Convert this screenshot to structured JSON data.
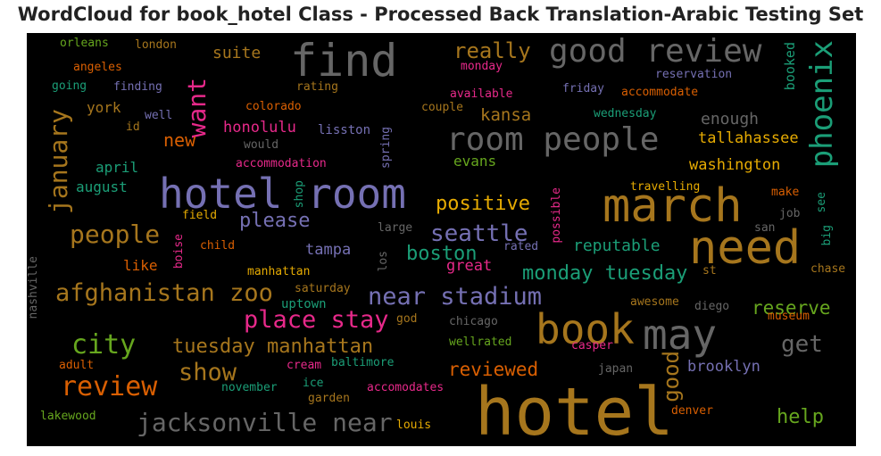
{
  "chart_data": {
    "type": "wordcloud",
    "title": "WordCloud for book_hotel Class - Processed Back Translation-Arabic Testing Set",
    "palette": {
      "brown": "#a6761d",
      "gray": "#666666",
      "purple": "#7570b3",
      "teal": "#1b9e77",
      "orange": "#d95f02",
      "pink": "#e7298a",
      "green": "#66a61e",
      "gold": "#e6ab02"
    },
    "words": [
      {
        "text": "hotel",
        "color": "brown"
      },
      {
        "text": "hotel room",
        "color": "purple"
      },
      {
        "text": "march",
        "color": "brown"
      },
      {
        "text": "need",
        "color": "brown"
      },
      {
        "text": "find",
        "color": "gray"
      },
      {
        "text": "book",
        "color": "brown"
      },
      {
        "text": "may",
        "color": "gray"
      },
      {
        "text": "room people",
        "color": "gray"
      },
      {
        "text": "good review",
        "color": "gray"
      },
      {
        "text": "phoenix",
        "color": "teal"
      },
      {
        "text": "jacksonville near",
        "color": "gray"
      },
      {
        "text": "afghanistan zoo",
        "color": "brown"
      },
      {
        "text": "near stadium",
        "color": "purple"
      },
      {
        "text": "review",
        "color": "orange"
      },
      {
        "text": "city",
        "color": "green"
      },
      {
        "text": "people",
        "color": "brown"
      },
      {
        "text": "place stay",
        "color": "pink"
      },
      {
        "text": "january",
        "color": "brown"
      },
      {
        "text": "want",
        "color": "pink"
      },
      {
        "text": "tuesday manhattan",
        "color": "brown"
      },
      {
        "text": "show",
        "color": "brown"
      },
      {
        "text": "seattle",
        "color": "purple"
      },
      {
        "text": "good",
        "color": "brown"
      },
      {
        "text": "get",
        "color": "gray"
      },
      {
        "text": "really",
        "color": "brown"
      },
      {
        "text": "monday tuesday",
        "color": "teal"
      },
      {
        "text": "boston",
        "color": "teal"
      },
      {
        "text": "positive",
        "color": "gold"
      },
      {
        "text": "please",
        "color": "purple"
      },
      {
        "text": "reviewed",
        "color": "orange"
      },
      {
        "text": "help",
        "color": "green"
      },
      {
        "text": "reserve",
        "color": "green"
      },
      {
        "text": "brooklyn",
        "color": "purple"
      },
      {
        "text": "kansa",
        "color": "brown"
      },
      {
        "text": "new",
        "color": "orange"
      },
      {
        "text": "reputable",
        "color": "teal"
      },
      {
        "text": "tallahassee",
        "color": "gold"
      },
      {
        "text": "washington",
        "color": "gold"
      },
      {
        "text": "enough",
        "color": "gray"
      },
      {
        "text": "suite",
        "color": "brown"
      },
      {
        "text": "tampa",
        "color": "purple"
      },
      {
        "text": "honolulu",
        "color": "pink"
      },
      {
        "text": "great",
        "color": "pink"
      },
      {
        "text": "booked",
        "color": "teal"
      },
      {
        "text": "york",
        "color": "brown"
      },
      {
        "text": "april",
        "color": "teal"
      },
      {
        "text": "august",
        "color": "teal"
      },
      {
        "text": "evans",
        "color": "green"
      },
      {
        "text": "like",
        "color": "orange"
      },
      {
        "text": "uptown",
        "color": "teal"
      },
      {
        "text": "lisston",
        "color": "purple"
      },
      {
        "text": "colorado",
        "color": "orange"
      },
      {
        "text": "manhattan",
        "color": "gold"
      },
      {
        "text": "saturday",
        "color": "brown"
      },
      {
        "text": "travelling",
        "color": "gold"
      },
      {
        "text": "awesome",
        "color": "brown"
      },
      {
        "text": "diego",
        "color": "gray"
      },
      {
        "text": "chicago",
        "color": "gray"
      },
      {
        "text": "wellrated",
        "color": "green"
      },
      {
        "text": "baltimore",
        "color": "teal"
      },
      {
        "text": "accomodates",
        "color": "pink"
      },
      {
        "text": "denver",
        "color": "orange"
      },
      {
        "text": "louis",
        "color": "gold"
      },
      {
        "text": "lakewood",
        "color": "green"
      },
      {
        "text": "adult",
        "color": "orange"
      },
      {
        "text": "cream",
        "color": "pink"
      },
      {
        "text": "ice",
        "color": "teal"
      },
      {
        "text": "garden",
        "color": "brown"
      },
      {
        "text": "november",
        "color": "teal"
      },
      {
        "text": "japan",
        "color": "gray"
      },
      {
        "text": "casper",
        "color": "pink"
      },
      {
        "text": "god",
        "color": "brown"
      },
      {
        "text": "museum",
        "color": "orange"
      },
      {
        "text": "chase",
        "color": "brown"
      },
      {
        "text": "st",
        "color": "brown"
      },
      {
        "text": "rated",
        "color": "purple"
      },
      {
        "text": "los",
        "color": "gray"
      },
      {
        "text": "large",
        "color": "gray"
      },
      {
        "text": "possible",
        "color": "pink"
      },
      {
        "text": "san",
        "color": "gray"
      },
      {
        "text": "job",
        "color": "gray"
      },
      {
        "text": "big",
        "color": "teal"
      },
      {
        "text": "see",
        "color": "teal"
      },
      {
        "text": "make",
        "color": "orange"
      },
      {
        "text": "child",
        "color": "orange"
      },
      {
        "text": "boise",
        "color": "pink"
      },
      {
        "text": "field",
        "color": "gold"
      },
      {
        "text": "shop",
        "color": "teal"
      },
      {
        "text": "spring",
        "color": "purple"
      },
      {
        "text": "would",
        "color": "gray"
      },
      {
        "text": "accommodation",
        "color": "pink"
      },
      {
        "text": "id",
        "color": "brown"
      },
      {
        "text": "well",
        "color": "purple"
      },
      {
        "text": "finding",
        "color": "purple"
      },
      {
        "text": "going",
        "color": "teal"
      },
      {
        "text": "angeles",
        "color": "orange"
      },
      {
        "text": "orleans",
        "color": "green"
      },
      {
        "text": "london",
        "color": "brown"
      },
      {
        "text": "rating",
        "color": "brown"
      },
      {
        "text": "couple",
        "color": "brown"
      },
      {
        "text": "available",
        "color": "pink"
      },
      {
        "text": "monday",
        "color": "pink"
      },
      {
        "text": "friday",
        "color": "purple"
      },
      {
        "text": "reservation",
        "color": "purple"
      },
      {
        "text": "accommodate",
        "color": "orange"
      },
      {
        "text": "wednesday",
        "color": "teal"
      },
      {
        "text": "nashville",
        "color": "gray"
      }
    ]
  }
}
